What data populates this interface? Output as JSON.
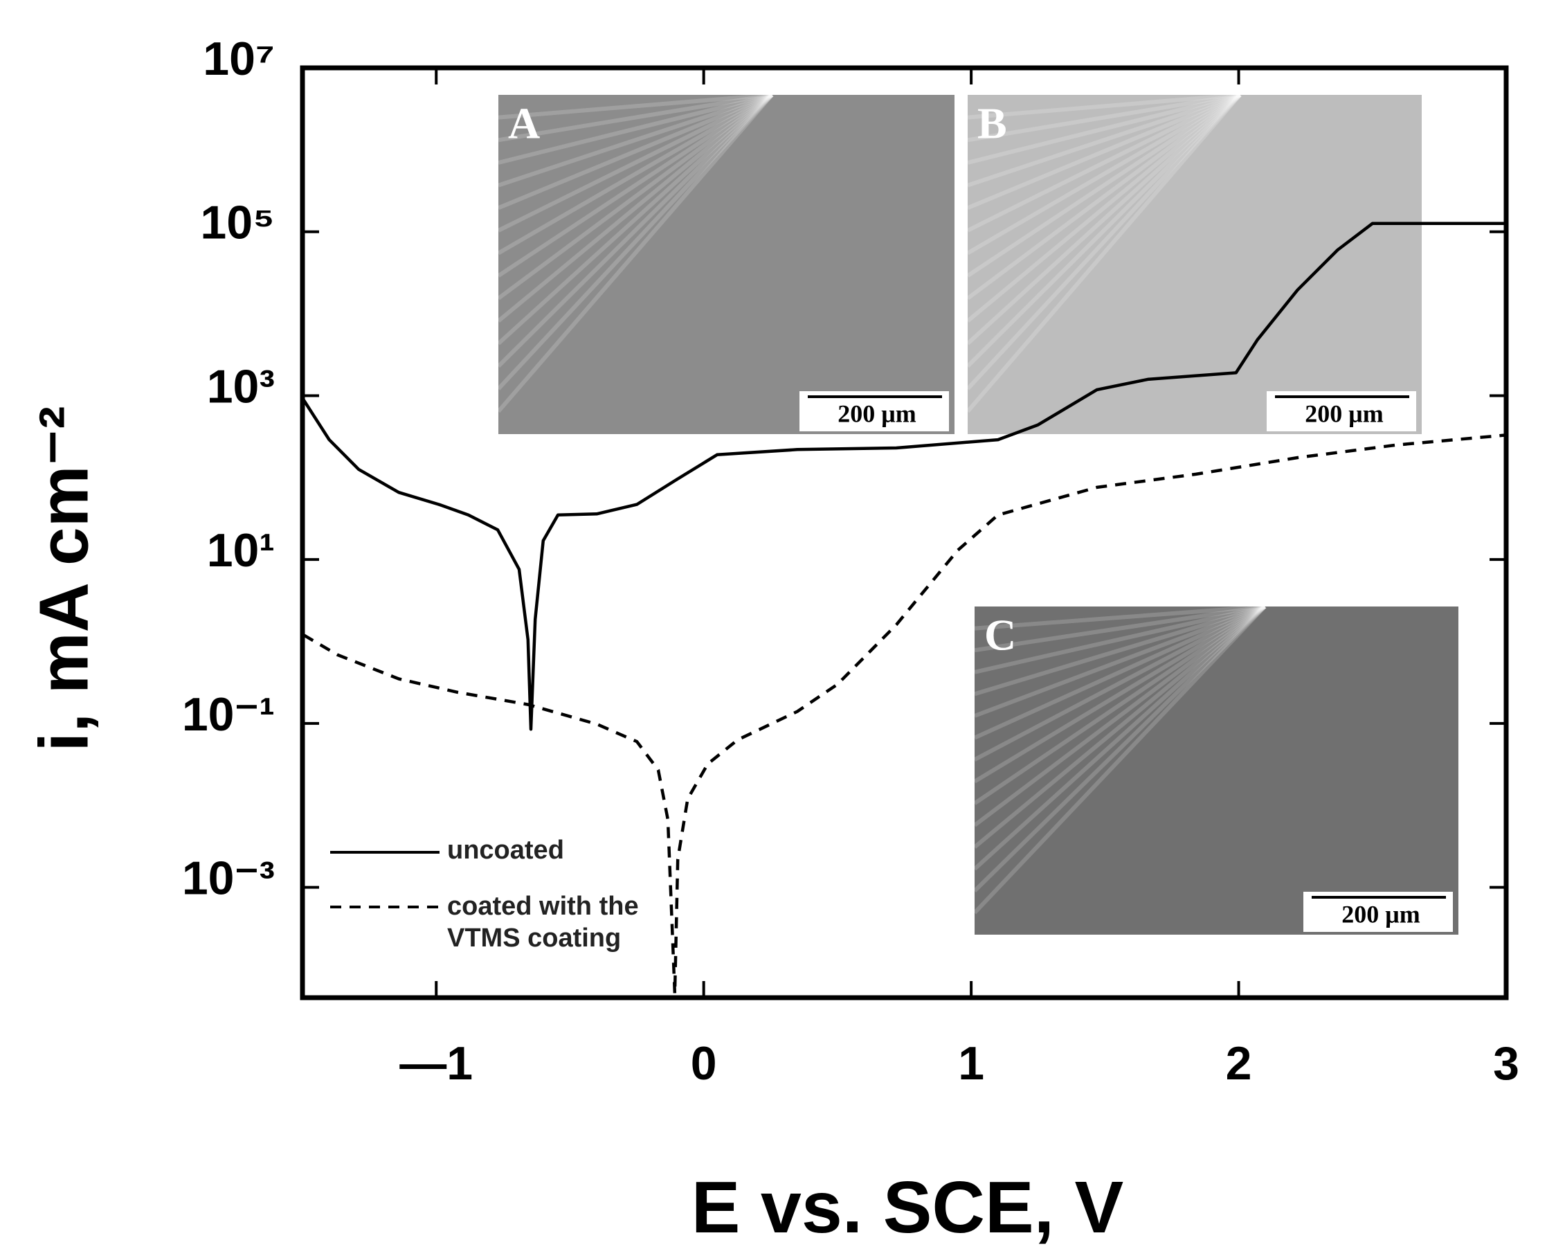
{
  "chart_data": {
    "type": "line",
    "xlabel": "E vs. SCE, V",
    "ylabel": "i, mA cm⁻²",
    "xlim": [
      -1.5,
      3
    ],
    "xticks": [
      {
        "value": -1,
        "label": "—1"
      },
      0,
      1,
      2,
      3
    ],
    "ylim": [
      4.5e-05,
      10000000
    ],
    "log_y": true,
    "yticks": [
      {
        "value": 0.001,
        "label": "10⁻³"
      },
      {
        "value": 0.1,
        "label": "10⁻¹"
      },
      {
        "value": 10,
        "label": "10¹"
      },
      {
        "value": 1000,
        "label": "10³"
      },
      {
        "value": 100000,
        "label": "10⁵"
      },
      {
        "value": 10000000,
        "label": "10⁷"
      }
    ],
    "legend": "lower left",
    "series": [
      {
        "name": "uncoated",
        "color": "#000000",
        "dash": false,
        "x": [
          -1.496,
          -1.4,
          -1.29,
          -1.14,
          -0.99,
          -0.88,
          -0.77,
          -0.69,
          -0.657,
          -0.646,
          -0.63,
          -0.6,
          -0.545,
          -0.4,
          -0.25,
          -0.1,
          0.05,
          0.35,
          0.72,
          1.1,
          1.25,
          1.47,
          1.66,
          1.99,
          2.07,
          2.22,
          2.37,
          2.5,
          3.0
        ],
        "values": [
          890,
          290,
          126,
          66,
          47,
          35,
          23,
          7.6,
          1.05,
          0.085,
          1.86,
          17,
          35,
          36,
          47,
          95,
          190,
          220,
          230,
          290,
          440,
          1180,
          1580,
          1900,
          4800,
          19500,
          60000,
          126000,
          126000
        ]
      },
      {
        "name": "coated with the VTMS coating",
        "color": "#000000",
        "dash": true,
        "x": [
          -1.496,
          -1.37,
          -1.14,
          -0.92,
          -0.657,
          -0.4,
          -0.25,
          -0.17,
          -0.134,
          -0.108,
          -0.097,
          -0.06,
          0.015,
          0.127,
          0.35,
          0.5,
          0.72,
          0.95,
          1.1,
          1.47,
          1.84,
          2.22,
          2.59,
          3.0
        ],
        "values": [
          1.2,
          0.69,
          0.35,
          0.24,
          0.17,
          0.098,
          0.06,
          0.027,
          0.0067,
          5e-05,
          0.0022,
          0.012,
          0.032,
          0.063,
          0.14,
          0.3,
          1.6,
          13,
          35,
          76,
          110,
          175,
          250,
          330
        ]
      }
    ],
    "insets": [
      {
        "label": "A",
        "scale_bar": "200 μm"
      },
      {
        "label": "B",
        "scale_bar": "200 μm"
      },
      {
        "label": "C",
        "scale_bar": "200 μm"
      }
    ]
  }
}
